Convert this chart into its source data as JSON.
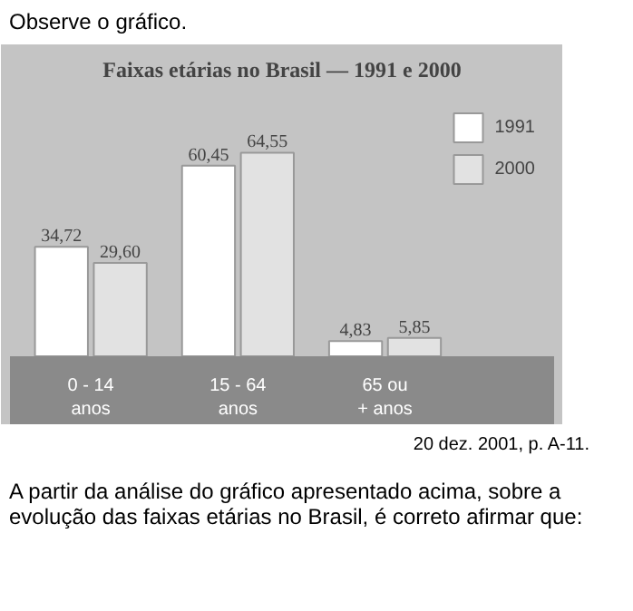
{
  "chart_data": {
    "type": "bar",
    "title": "Faixas etárias no Brasil — 1991 e 2000",
    "categories": [
      "0 - 14\nanos",
      "15 - 64\nanos",
      "65 ou\n+ anos"
    ],
    "series": [
      {
        "name": "1991",
        "color": "#ffffff",
        "values": [
          34.72,
          60.45,
          4.83
        ],
        "value_labels": [
          "34,72",
          "60,45",
          "4,83"
        ]
      },
      {
        "name": "2000",
        "color": "#e2e2e2",
        "values": [
          29.6,
          64.55,
          5.85
        ],
        "value_labels": [
          "29,60",
          "64,55",
          "5,85"
        ]
      }
    ],
    "legend": "top right",
    "grid": false,
    "annotations": [
      "Observe o gráfico.",
      "20 dez. 2001, p. A-11.",
      "A partir da análise do gráfico apresentado acima, sobre a evolução das faixas etárias no Brasil, é correto afirmar que:"
    ]
  }
}
